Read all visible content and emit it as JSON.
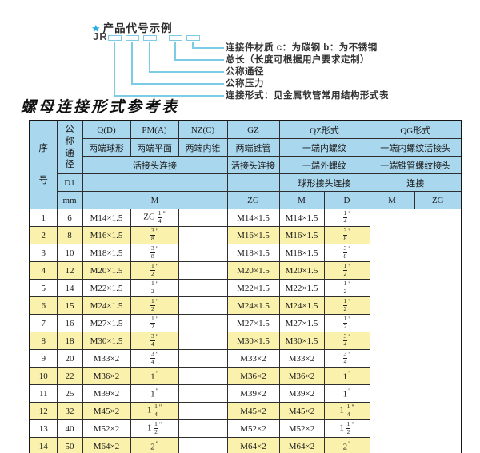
{
  "colors": {
    "header_bg": "#a9d7ee",
    "row_alt_bg": "#faf1ad",
    "line_blue": "#7ecbe6",
    "star_blue": "#29abe2"
  },
  "diagram": {
    "star_icon": "★",
    "heading": "产品代号示例",
    "prefix": "JR",
    "labels": [
      "连接件材质  c：为碳钢  b：为不锈钢",
      "总长（长度可根据用户要求定制）",
      "公称通径",
      "公称压力",
      "连接形式：见金属软管常用结构形式表"
    ]
  },
  "title": "螺母连接形式参考表",
  "table": {
    "header": {
      "seq": "序号",
      "nominal_diameter": "公称通径",
      "d1": "D1",
      "mm": "mm",
      "q": "Q(D)",
      "q_desc": "两端球形",
      "pm": "PM(A)",
      "pm_desc": "两端平面",
      "nz": "NZ(C)",
      "nz_desc": "两端内锥",
      "gz": "GZ",
      "gz_desc": "两端锥管",
      "qz": "QZ形式",
      "qz_desc1": "一端内螺纹",
      "qz_desc2": "一端外螺纹",
      "qg": "QG形式",
      "qg_desc1": "一端内螺纹活接头",
      "qg_desc2": "一端锥管螺纹接头",
      "union_connection": "活接头连接",
      "qz_connection": "球形接头连接",
      "qg_connection": "连接",
      "m": "M",
      "zg": "ZG",
      "d": "D"
    },
    "rows": [
      [
        "1",
        "6",
        "M14×1.5",
        "ZG 1/4\"",
        "",
        "M14×1.5",
        "M14×1.5",
        "1/4\""
      ],
      [
        "2",
        "8",
        "M16×1.5",
        "3/8\"",
        "",
        "M16×1.5",
        "M16×1.5",
        "3/8\""
      ],
      [
        "3",
        "10",
        "M18×1.5",
        "3/8\"",
        "",
        "M18×1.5",
        "M18×1.5",
        "3/8\""
      ],
      [
        "4",
        "12",
        "M20×1.5",
        "1/2\"",
        "",
        "M20×1.5",
        "M20×1.5",
        "1/2\""
      ],
      [
        "5",
        "14",
        "M22×1.5",
        "1/2\"",
        "",
        "M22×1.5",
        "M22×1.5",
        "1/2\""
      ],
      [
        "6",
        "15",
        "M24×1.5",
        "1/2\"",
        "",
        "M24×1.5",
        "M24×1.5",
        "1/2\""
      ],
      [
        "7",
        "16",
        "M27×1.5",
        "1/2\"",
        "",
        "M27×1.5",
        "M27×1.5",
        "1/2\""
      ],
      [
        "8",
        "18",
        "M30×1.5",
        "3/4\"",
        "",
        "M30×1.5",
        "M30×1.5",
        "3/4\""
      ],
      [
        "9",
        "20",
        "M33×2",
        "3/4\"",
        "",
        "M33×2",
        "M33×2",
        "3/4\""
      ],
      [
        "10",
        "22",
        "M36×2",
        "1\"",
        "",
        "M36×2",
        "M36×2",
        "1\""
      ],
      [
        "11",
        "25",
        "M39×2",
        "1\"",
        "",
        "M39×2",
        "M39×2",
        "1\""
      ],
      [
        "12",
        "32",
        "M45×2",
        "1 1/4\"",
        "",
        "M45×2",
        "M45×2",
        "1 1/4\""
      ],
      [
        "13",
        "40",
        "M52×2",
        "1 1/2\"",
        "",
        "M52×2",
        "M52×2",
        "1 1/2\""
      ],
      [
        "14",
        "50",
        "M64×2",
        "2\"",
        "",
        "M64×2",
        "M64×2",
        "2\""
      ]
    ]
  }
}
